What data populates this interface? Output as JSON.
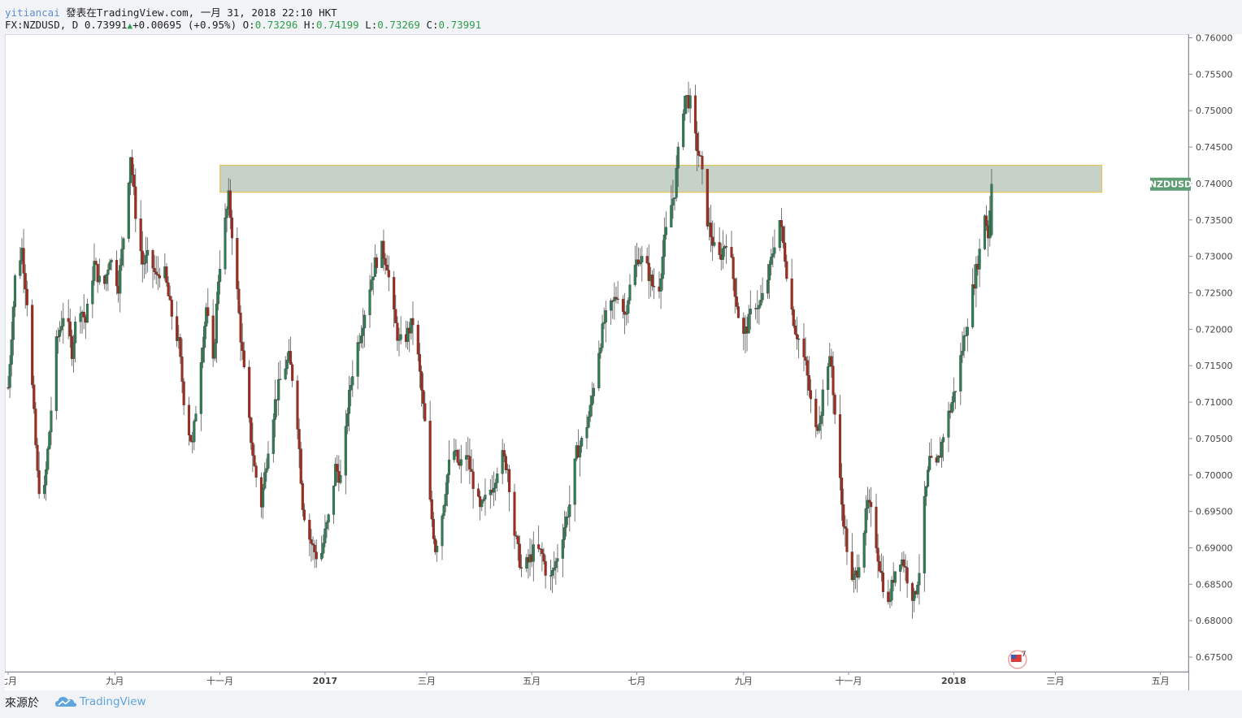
{
  "header": {
    "author": "yitiancai",
    "published": "發表在TradingView.com, 一月 31, 2018 22:10 HKT",
    "symbol": "FX:NZDUSD, D",
    "last": "0.73991",
    "change": "+0.00695 (+0.95%)",
    "o_label": "O:",
    "o_value": "0.73296",
    "h_label": "H:",
    "h_value": "0.74199",
    "l_label": "L:",
    "l_value": "0.73269",
    "c_label": "C:",
    "c_value": "0.73991"
  },
  "footer": {
    "source_label": "來源於",
    "brand": "TradingView"
  },
  "colors": {
    "up": "#2f7d55",
    "down": "#a52a1c",
    "zone_fill": "#c6d2c8",
    "zone_border": "#e6c35a",
    "badge": "#5f9d74"
  },
  "chart_data": {
    "type": "candlestick",
    "symbol_badge": "NZDUSD",
    "ylim": [
      0.673,
      0.7605
    ],
    "y_ticks": [
      0.675,
      0.68,
      0.685,
      0.69,
      0.695,
      0.7,
      0.705,
      0.71,
      0.715,
      0.72,
      0.725,
      0.73,
      0.735,
      0.74,
      0.745,
      0.75,
      0.755,
      0.76
    ],
    "y_tick_labels": [
      "0.67500",
      "0.68000",
      "0.68500",
      "0.69000",
      "0.69500",
      "0.70000",
      "0.70500",
      "0.71000",
      "0.71500",
      "0.72000",
      "0.72500",
      "0.73000",
      "0.73500",
      "0.74000",
      "0.74500",
      "0.75000",
      "0.75500",
      "0.76000"
    ],
    "x_ticks": [
      {
        "label": "七月",
        "day": 0,
        "bold": false
      },
      {
        "label": "九月",
        "day": 62,
        "bold": false
      },
      {
        "label": "十一月",
        "day": 123,
        "bold": false
      },
      {
        "label": "2017",
        "day": 184,
        "bold": true
      },
      {
        "label": "三月",
        "day": 243,
        "bold": false
      },
      {
        "label": "五月",
        "day": 304,
        "bold": false
      },
      {
        "label": "七月",
        "day": 365,
        "bold": false
      },
      {
        "label": "九月",
        "day": 427,
        "bold": false
      },
      {
        "label": "十一月",
        "day": 488,
        "bold": false
      },
      {
        "label": "2018",
        "day": 549,
        "bold": true
      },
      {
        "label": "三月",
        "day": 608,
        "bold": false
      },
      {
        "label": "五月",
        "day": 669,
        "bold": false
      }
    ],
    "zone": {
      "y_low": 0.7388,
      "y_high": 0.7425,
      "day_start": 123,
      "day_end": 635
    },
    "event_badge": "7",
    "anchors": [
      [
        0,
        0.712
      ],
      [
        4,
        0.727
      ],
      [
        8,
        0.731
      ],
      [
        11,
        0.724
      ],
      [
        14,
        0.712
      ],
      [
        17,
        0.7
      ],
      [
        20,
        0.695
      ],
      [
        24,
        0.706
      ],
      [
        28,
        0.718
      ],
      [
        33,
        0.723
      ],
      [
        37,
        0.717
      ],
      [
        41,
        0.724
      ],
      [
        45,
        0.721
      ],
      [
        50,
        0.729
      ],
      [
        55,
        0.725
      ],
      [
        59,
        0.73
      ],
      [
        64,
        0.726
      ],
      [
        68,
        0.735
      ],
      [
        71,
        0.744
      ],
      [
        74,
        0.736
      ],
      [
        78,
        0.729
      ],
      [
        82,
        0.73
      ],
      [
        86,
        0.727
      ],
      [
        90,
        0.729
      ],
      [
        94,
        0.723
      ],
      [
        99,
        0.718
      ],
      [
        103,
        0.708
      ],
      [
        107,
        0.704
      ],
      [
        111,
        0.714
      ],
      [
        115,
        0.723
      ],
      [
        119,
        0.715
      ],
      [
        122,
        0.727
      ],
      [
        125,
        0.733
      ],
      [
        128,
        0.738
      ],
      [
        131,
        0.731
      ],
      [
        135,
        0.719
      ],
      [
        139,
        0.709
      ],
      [
        143,
        0.701
      ],
      [
        147,
        0.696
      ],
      [
        151,
        0.704
      ],
      [
        155,
        0.71
      ],
      [
        159,
        0.714
      ],
      [
        163,
        0.716
      ],
      [
        167,
        0.711
      ],
      [
        171,
        0.696
      ],
      [
        174,
        0.692
      ],
      [
        177,
        0.69
      ],
      [
        181,
        0.688
      ],
      [
        184,
        0.692
      ],
      [
        187,
        0.695
      ],
      [
        190,
        0.701
      ],
      [
        194,
        0.699
      ],
      [
        197,
        0.709
      ],
      [
        201,
        0.716
      ],
      [
        205,
        0.72
      ],
      [
        209,
        0.725
      ],
      [
        213,
        0.729
      ],
      [
        217,
        0.731
      ],
      [
        220,
        0.729
      ],
      [
        223,
        0.723
      ],
      [
        227,
        0.718
      ],
      [
        231,
        0.719
      ],
      [
        235,
        0.721
      ],
      [
        238,
        0.716
      ],
      [
        242,
        0.707
      ],
      [
        245,
        0.696
      ],
      [
        248,
        0.69
      ],
      [
        251,
        0.693
      ],
      [
        255,
        0.7
      ],
      [
        258,
        0.704
      ],
      [
        262,
        0.701
      ],
      [
        266,
        0.703
      ],
      [
        270,
        0.699
      ],
      [
        274,
        0.695
      ],
      [
        278,
        0.697
      ],
      [
        282,
        0.699
      ],
      [
        286,
        0.703
      ],
      [
        290,
        0.701
      ],
      [
        294,
        0.692
      ],
      [
        298,
        0.687
      ],
      [
        302,
        0.688
      ],
      [
        306,
        0.69
      ],
      [
        310,
        0.689
      ],
      [
        314,
        0.685
      ],
      [
        318,
        0.688
      ],
      [
        322,
        0.692
      ],
      [
        326,
        0.696
      ],
      [
        330,
        0.703
      ],
      [
        334,
        0.705
      ],
      [
        338,
        0.709
      ],
      [
        342,
        0.716
      ],
      [
        346,
        0.721
      ],
      [
        350,
        0.723
      ],
      [
        354,
        0.725
      ],
      [
        358,
        0.722
      ],
      [
        362,
        0.727
      ],
      [
        366,
        0.73
      ],
      [
        370,
        0.729
      ],
      [
        374,
        0.726
      ],
      [
        378,
        0.726
      ],
      [
        381,
        0.732
      ],
      [
        384,
        0.736
      ],
      [
        387,
        0.739
      ],
      [
        389,
        0.744
      ],
      [
        391,
        0.749
      ],
      [
        393,
        0.752
      ],
      [
        396,
        0.751
      ],
      [
        399,
        0.746
      ],
      [
        402,
        0.743
      ],
      [
        404,
        0.739
      ],
      [
        406,
        0.735
      ],
      [
        409,
        0.732
      ],
      [
        412,
        0.729
      ],
      [
        415,
        0.731
      ],
      [
        418,
        0.733
      ],
      [
        421,
        0.727
      ],
      [
        424,
        0.722
      ],
      [
        427,
        0.719
      ],
      [
        430,
        0.721
      ],
      [
        433,
        0.724
      ],
      [
        436,
        0.723
      ],
      [
        439,
        0.725
      ],
      [
        442,
        0.728
      ],
      [
        445,
        0.732
      ],
      [
        448,
        0.735
      ],
      [
        451,
        0.73
      ],
      [
        454,
        0.724
      ],
      [
        457,
        0.72
      ],
      [
        460,
        0.718
      ],
      [
        463,
        0.715
      ],
      [
        466,
        0.71
      ],
      [
        469,
        0.706
      ],
      [
        472,
        0.709
      ],
      [
        475,
        0.716
      ],
      [
        478,
        0.715
      ],
      [
        481,
        0.705
      ],
      [
        484,
        0.696
      ],
      [
        487,
        0.69
      ],
      [
        490,
        0.685
      ],
      [
        493,
        0.687
      ],
      [
        496,
        0.691
      ],
      [
        499,
        0.696
      ],
      [
        502,
        0.694
      ],
      [
        505,
        0.689
      ],
      [
        508,
        0.685
      ],
      [
        511,
        0.682
      ],
      [
        514,
        0.686
      ],
      [
        517,
        0.689
      ],
      [
        520,
        0.688
      ],
      [
        523,
        0.685
      ],
      [
        526,
        0.683
      ],
      [
        529,
        0.687
      ],
      [
        532,
        0.696
      ],
      [
        535,
        0.702
      ],
      [
        538,
        0.7
      ],
      [
        541,
        0.703
      ],
      [
        544,
        0.707
      ],
      [
        547,
        0.709
      ],
      [
        550,
        0.712
      ],
      [
        553,
        0.716
      ],
      [
        556,
        0.72
      ],
      [
        559,
        0.724
      ],
      [
        562,
        0.728
      ],
      [
        565,
        0.732
      ],
      [
        567,
        0.736
      ],
      [
        569,
        0.733
      ],
      [
        571,
        0.7399
      ]
    ]
  }
}
